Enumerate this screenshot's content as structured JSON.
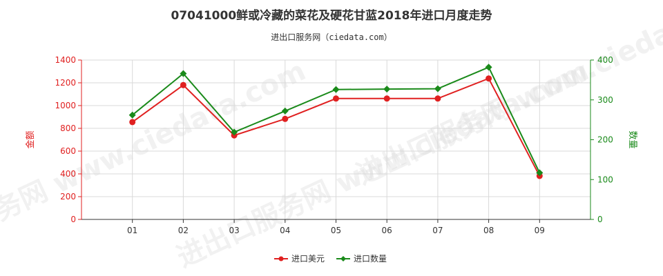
{
  "chart_data": {
    "type": "line",
    "title": "07041000鲜或冷藏的菜花及硬花甘蓝2018年进口月度走势",
    "subtitle": "进出口服务网（ciedata.com）",
    "watermark": "进出口服务网 www.ciedata.com",
    "categories": [
      "01",
      "02",
      "03",
      "04",
      "05",
      "06",
      "07",
      "08",
      "09"
    ],
    "ylabel_left": "金额",
    "ylabel_right": "数量",
    "ylim_left": [
      0,
      1400
    ],
    "ylim_right": [
      0,
      400
    ],
    "yticks_left": [
      "0",
      "200",
      "400",
      "600",
      "800",
      "1000",
      "1200",
      "1400"
    ],
    "yticks_right": [
      "0",
      "100",
      "200",
      "300",
      "400"
    ],
    "grid": true,
    "legend_position": "bottom-center",
    "series": [
      {
        "name": "进口美元",
        "axis": "left",
        "color": "#e02020",
        "marker": "circle",
        "values": [
          855,
          1180,
          738,
          883,
          1062,
          1062,
          1062,
          1238,
          382
        ]
      },
      {
        "name": "进口数量",
        "axis": "right",
        "color": "#1a8a1a",
        "marker": "diamond",
        "values": [
          262,
          366,
          219,
          272,
          326,
          327,
          328,
          382,
          117
        ]
      }
    ]
  }
}
